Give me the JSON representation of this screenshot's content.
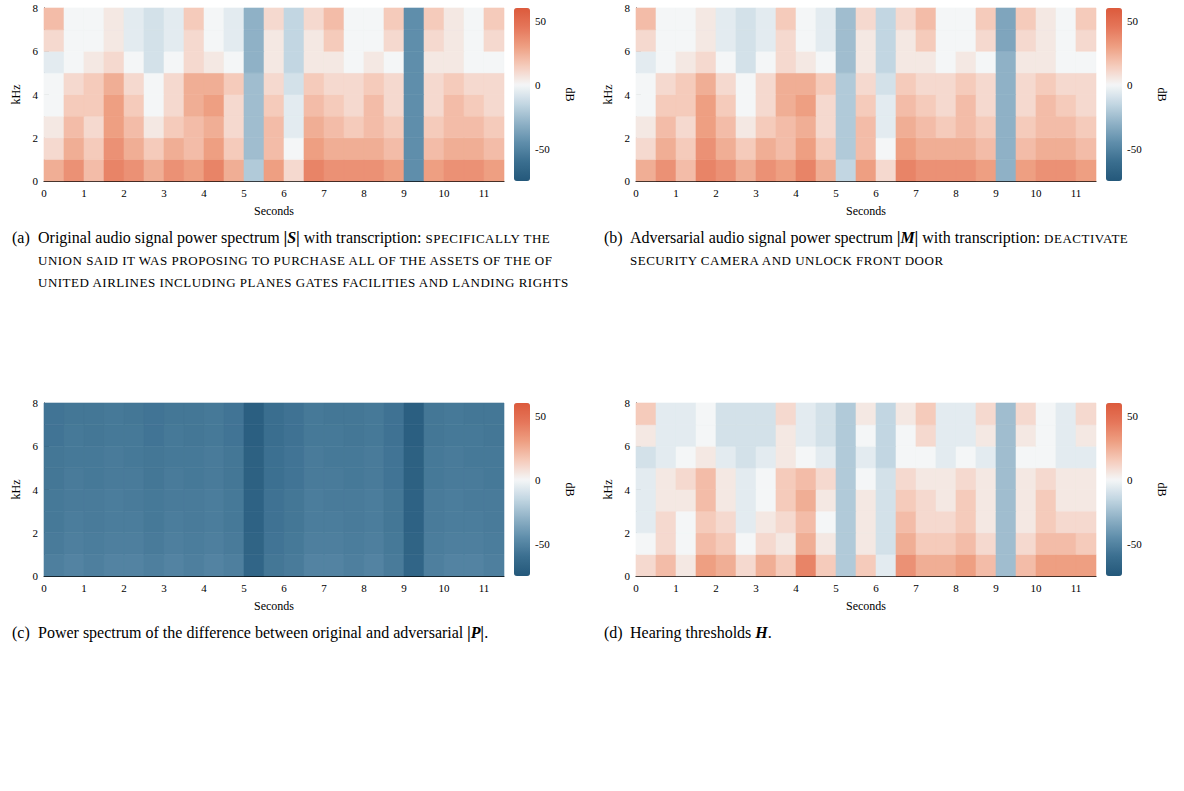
{
  "chart_data": [
    {
      "type": "heatmap",
      "label": "(a)",
      "caption": "Original audio signal power spectrum",
      "symbol": "|S|",
      "caption_after": "with transcription:",
      "transcription": "SPECIFICALLY THE UNION SAID IT WAS PROPOSING TO PURCHASE ALL OF THE ASSETS OF THE OF UNITED AIRLINES INCLUDING PLANES GATES FACILITIES AND LANDING RIGHTS",
      "x_label": "Seconds",
      "y_label": "kHz",
      "xlim": [
        0,
        11.5
      ],
      "xticks": [
        0,
        1,
        2,
        3,
        4,
        5,
        6,
        7,
        8,
        9,
        10,
        11
      ],
      "ylim": [
        0,
        8
      ],
      "yticks": [
        0,
        2,
        4,
        6,
        8
      ],
      "t_edges": [
        0,
        0.5,
        1,
        1.5,
        2,
        2.5,
        3,
        3.5,
        4,
        4.5,
        5,
        5.5,
        6,
        6.5,
        7,
        7.5,
        8,
        8.5,
        9,
        9.5,
        10,
        10.5,
        11,
        11.5
      ],
      "f_edges": [
        0,
        1,
        2,
        3,
        4,
        5,
        6,
        7,
        8
      ],
      "cells": [
        [
          25,
          35,
          20,
          40,
          35,
          25,
          35,
          30,
          40,
          25,
          -20,
          30,
          10,
          40,
          35,
          35,
          35,
          30,
          -45,
          30,
          35,
          35,
          30
        ],
        [
          10,
          25,
          15,
          35,
          25,
          15,
          25,
          20,
          30,
          15,
          -25,
          20,
          0,
          30,
          25,
          25,
          25,
          20,
          -45,
          20,
          25,
          25,
          20
        ],
        [
          5,
          20,
          10,
          30,
          20,
          5,
          15,
          20,
          25,
          10,
          -25,
          20,
          -5,
          25,
          20,
          15,
          20,
          15,
          -45,
          15,
          20,
          20,
          15
        ],
        [
          0,
          15,
          15,
          30,
          15,
          0,
          10,
          25,
          30,
          10,
          -25,
          15,
          -5,
          20,
          15,
          10,
          20,
          10,
          -45,
          10,
          20,
          15,
          10
        ],
        [
          0,
          10,
          15,
          25,
          10,
          0,
          10,
          25,
          25,
          15,
          -25,
          10,
          -10,
          15,
          10,
          10,
          15,
          10,
          -45,
          10,
          15,
          10,
          10
        ],
        [
          -5,
          0,
          5,
          10,
          0,
          -10,
          0,
          10,
          5,
          0,
          -30,
          5,
          -15,
          5,
          5,
          0,
          5,
          0,
          -45,
          5,
          5,
          0,
          0
        ],
        [
          10,
          0,
          0,
          5,
          -5,
          -10,
          -5,
          10,
          0,
          -5,
          -30,
          5,
          -15,
          5,
          15,
          0,
          0,
          10,
          -45,
          10,
          5,
          0,
          10
        ],
        [
          20,
          0,
          0,
          5,
          -5,
          -10,
          -5,
          15,
          0,
          -5,
          -30,
          10,
          -15,
          10,
          20,
          0,
          0,
          15,
          -45,
          15,
          5,
          0,
          15
        ]
      ],
      "colorbar": {
        "label": "dB",
        "lim": [
          -75,
          60
        ],
        "ticks": [
          -50,
          0,
          50
        ]
      }
    },
    {
      "type": "heatmap",
      "label": "(b)",
      "caption": "Adversarial audio signal power spectrum",
      "symbol": "|M|",
      "caption_after": "with transcription:",
      "transcription": "DEACTIVATE SECURITY CAMERA AND UNLOCK FRONT DOOR",
      "x_label": "Seconds",
      "y_label": "kHz",
      "xlim": [
        0,
        11.5
      ],
      "xticks": [
        0,
        1,
        2,
        3,
        4,
        5,
        6,
        7,
        8,
        9,
        10,
        11
      ],
      "ylim": [
        0,
        8
      ],
      "yticks": [
        0,
        2,
        4,
        6,
        8
      ],
      "t_edges": [
        0,
        0.5,
        1,
        1.5,
        2,
        2.5,
        3,
        3.5,
        4,
        4.5,
        5,
        5.5,
        6,
        6.5,
        7,
        7.5,
        8,
        8.5,
        9,
        9.5,
        10,
        10.5,
        11,
        11.5
      ],
      "f_edges": [
        0,
        1,
        2,
        3,
        4,
        5,
        6,
        7,
        8
      ],
      "cells": [
        [
          25,
          35,
          20,
          40,
          35,
          25,
          35,
          30,
          40,
          25,
          -15,
          30,
          10,
          40,
          35,
          35,
          35,
          30,
          -30,
          30,
          35,
          35,
          30
        ],
        [
          10,
          25,
          15,
          35,
          25,
          15,
          25,
          20,
          30,
          15,
          -20,
          20,
          0,
          30,
          25,
          25,
          25,
          20,
          -30,
          20,
          25,
          25,
          20
        ],
        [
          5,
          20,
          10,
          30,
          20,
          5,
          15,
          20,
          25,
          10,
          -20,
          20,
          -5,
          25,
          20,
          15,
          20,
          15,
          -30,
          15,
          20,
          20,
          15
        ],
        [
          0,
          15,
          15,
          30,
          15,
          0,
          10,
          25,
          30,
          10,
          -20,
          15,
          -5,
          20,
          15,
          10,
          20,
          10,
          -30,
          10,
          20,
          15,
          10
        ],
        [
          0,
          10,
          15,
          25,
          10,
          0,
          10,
          25,
          25,
          15,
          -20,
          10,
          -10,
          15,
          10,
          10,
          15,
          10,
          -30,
          10,
          15,
          10,
          10
        ],
        [
          -5,
          0,
          5,
          10,
          0,
          -10,
          0,
          10,
          5,
          0,
          -25,
          5,
          -15,
          5,
          5,
          0,
          5,
          0,
          -30,
          5,
          5,
          0,
          0
        ],
        [
          10,
          0,
          0,
          5,
          -5,
          -10,
          -5,
          10,
          0,
          -5,
          -25,
          5,
          -15,
          5,
          15,
          0,
          0,
          10,
          -35,
          10,
          5,
          0,
          10
        ],
        [
          20,
          0,
          0,
          5,
          -5,
          -10,
          -5,
          15,
          0,
          -5,
          -25,
          10,
          -15,
          10,
          20,
          0,
          0,
          15,
          -35,
          15,
          5,
          0,
          15
        ]
      ],
      "colorbar": {
        "label": "dB",
        "lim": [
          -75,
          60
        ],
        "ticks": [
          -50,
          0,
          50
        ]
      }
    },
    {
      "type": "heatmap",
      "label": "(c)",
      "caption": "Power spectrum of the difference between original and adversarial",
      "symbol": "|P|",
      "caption_after": ".",
      "x_label": "Seconds",
      "y_label": "kHz",
      "xlim": [
        0,
        11.5
      ],
      "xticks": [
        0,
        1,
        2,
        3,
        4,
        5,
        6,
        7,
        8,
        9,
        10,
        11
      ],
      "ylim": [
        0,
        8
      ],
      "yticks": [
        0,
        2,
        4,
        6,
        8
      ],
      "t_edges": [
        0,
        0.5,
        1,
        1.5,
        2,
        2.5,
        3,
        3.5,
        4,
        4.5,
        5,
        5.5,
        6,
        6.5,
        7,
        7.5,
        8,
        8.5,
        9,
        9.5,
        10,
        10.5,
        11,
        11.5
      ],
      "f_edges": [
        0,
        1,
        2,
        3,
        4,
        5,
        6,
        7,
        8
      ],
      "cells": [
        [
          -52,
          -50,
          -52,
          -50,
          -50,
          -52,
          -50,
          -52,
          -50,
          -52,
          -66,
          -56,
          -54,
          -50,
          -50,
          -52,
          -50,
          -54,
          -66,
          -52,
          -50,
          -50,
          -52
        ],
        [
          -54,
          -52,
          -53,
          -52,
          -52,
          -54,
          -52,
          -53,
          -52,
          -54,
          -67,
          -57,
          -55,
          -52,
          -52,
          -53,
          -52,
          -55,
          -67,
          -53,
          -52,
          -52,
          -53
        ],
        [
          -55,
          -53,
          -54,
          -53,
          -53,
          -55,
          -53,
          -54,
          -53,
          -55,
          -68,
          -58,
          -56,
          -53,
          -53,
          -54,
          -53,
          -56,
          -68,
          -54,
          -53,
          -53,
          -54
        ],
        [
          -55,
          -54,
          -54,
          -53,
          -54,
          -55,
          -54,
          -54,
          -53,
          -55,
          -68,
          -58,
          -56,
          -53,
          -54,
          -54,
          -53,
          -56,
          -68,
          -54,
          -53,
          -54,
          -54
        ],
        [
          -56,
          -54,
          -55,
          -54,
          -54,
          -56,
          -54,
          -55,
          -54,
          -56,
          -69,
          -59,
          -57,
          -54,
          -54,
          -55,
          -54,
          -57,
          -69,
          -55,
          -54,
          -54,
          -55
        ],
        [
          -56,
          -55,
          -55,
          -54,
          -55,
          -56,
          -55,
          -55,
          -54,
          -56,
          -69,
          -59,
          -57,
          -54,
          -55,
          -55,
          -54,
          -57,
          -69,
          -55,
          -54,
          -55,
          -55
        ],
        [
          -57,
          -55,
          -56,
          -55,
          -55,
          -57,
          -55,
          -56,
          -55,
          -57,
          -70,
          -60,
          -58,
          -55,
          -55,
          -56,
          -55,
          -58,
          -70,
          -56,
          -55,
          -55,
          -56
        ],
        [
          -57,
          -56,
          -56,
          -55,
          -56,
          -57,
          -56,
          -56,
          -55,
          -57,
          -70,
          -60,
          -58,
          -55,
          -56,
          -56,
          -55,
          -58,
          -70,
          -56,
          -55,
          -56,
          -56
        ]
      ],
      "colorbar": {
        "label": "dB",
        "lim": [
          -75,
          60
        ],
        "ticks": [
          -50,
          0,
          50
        ]
      }
    },
    {
      "type": "heatmap",
      "label": "(d)",
      "caption": "Hearing thresholds",
      "symbol": "H",
      "caption_after": ".",
      "x_label": "Seconds",
      "y_label": "kHz",
      "xlim": [
        0,
        11.5
      ],
      "xticks": [
        0,
        1,
        2,
        3,
        4,
        5,
        6,
        7,
        8,
        9,
        10,
        11
      ],
      "ylim": [
        0,
        8
      ],
      "yticks": [
        0,
        2,
        4,
        6,
        8
      ],
      "t_edges": [
        0,
        0.5,
        1,
        1.5,
        2,
        2.5,
        3,
        3.5,
        4,
        4.5,
        5,
        5.5,
        6,
        6.5,
        7,
        7.5,
        8,
        8.5,
        9,
        9.5,
        10,
        10.5,
        11,
        11.5
      ],
      "f_edges": [
        0,
        1,
        2,
        3,
        4,
        5,
        6,
        7,
        8
      ],
      "cells": [
        [
          10,
          20,
          5,
          30,
          25,
          10,
          25,
          15,
          40,
          15,
          -20,
          15,
          -5,
          35,
          25,
          25,
          30,
          20,
          -25,
          20,
          30,
          30,
          30
        ],
        [
          0,
          10,
          0,
          20,
          15,
          0,
          10,
          5,
          25,
          5,
          -20,
          5,
          -10,
          25,
          15,
          15,
          20,
          10,
          -25,
          10,
          20,
          20,
          15
        ],
        [
          -5,
          10,
          0,
          15,
          10,
          -5,
          5,
          10,
          20,
          0,
          -20,
          5,
          -10,
          20,
          10,
          10,
          15,
          5,
          -25,
          5,
          15,
          10,
          10
        ],
        [
          -5,
          5,
          5,
          20,
          5,
          -5,
          0,
          15,
          25,
          5,
          -20,
          5,
          -10,
          15,
          10,
          5,
          15,
          5,
          -25,
          5,
          15,
          5,
          5
        ],
        [
          -5,
          5,
          10,
          20,
          5,
          -5,
          0,
          15,
          20,
          10,
          -20,
          0,
          -10,
          10,
          5,
          5,
          10,
          5,
          -25,
          5,
          10,
          5,
          5
        ],
        [
          -10,
          -5,
          0,
          5,
          -5,
          -10,
          -5,
          5,
          0,
          -5,
          -20,
          -5,
          -15,
          0,
          0,
          -5,
          0,
          -5,
          -25,
          0,
          0,
          -5,
          -5
        ],
        [
          5,
          -5,
          -5,
          0,
          -10,
          -10,
          -10,
          5,
          -5,
          -10,
          -20,
          0,
          -15,
          0,
          10,
          -5,
          -5,
          5,
          -25,
          5,
          0,
          -5,
          5
        ],
        [
          15,
          -5,
          -5,
          0,
          -10,
          -10,
          -10,
          10,
          -5,
          -10,
          -20,
          5,
          -15,
          5,
          15,
          -5,
          -5,
          10,
          -25,
          10,
          0,
          -5,
          10
        ]
      ],
      "colorbar": {
        "label": "dB",
        "lim": [
          -75,
          60
        ],
        "ticks": [
          -50,
          0,
          50
        ]
      }
    }
  ]
}
